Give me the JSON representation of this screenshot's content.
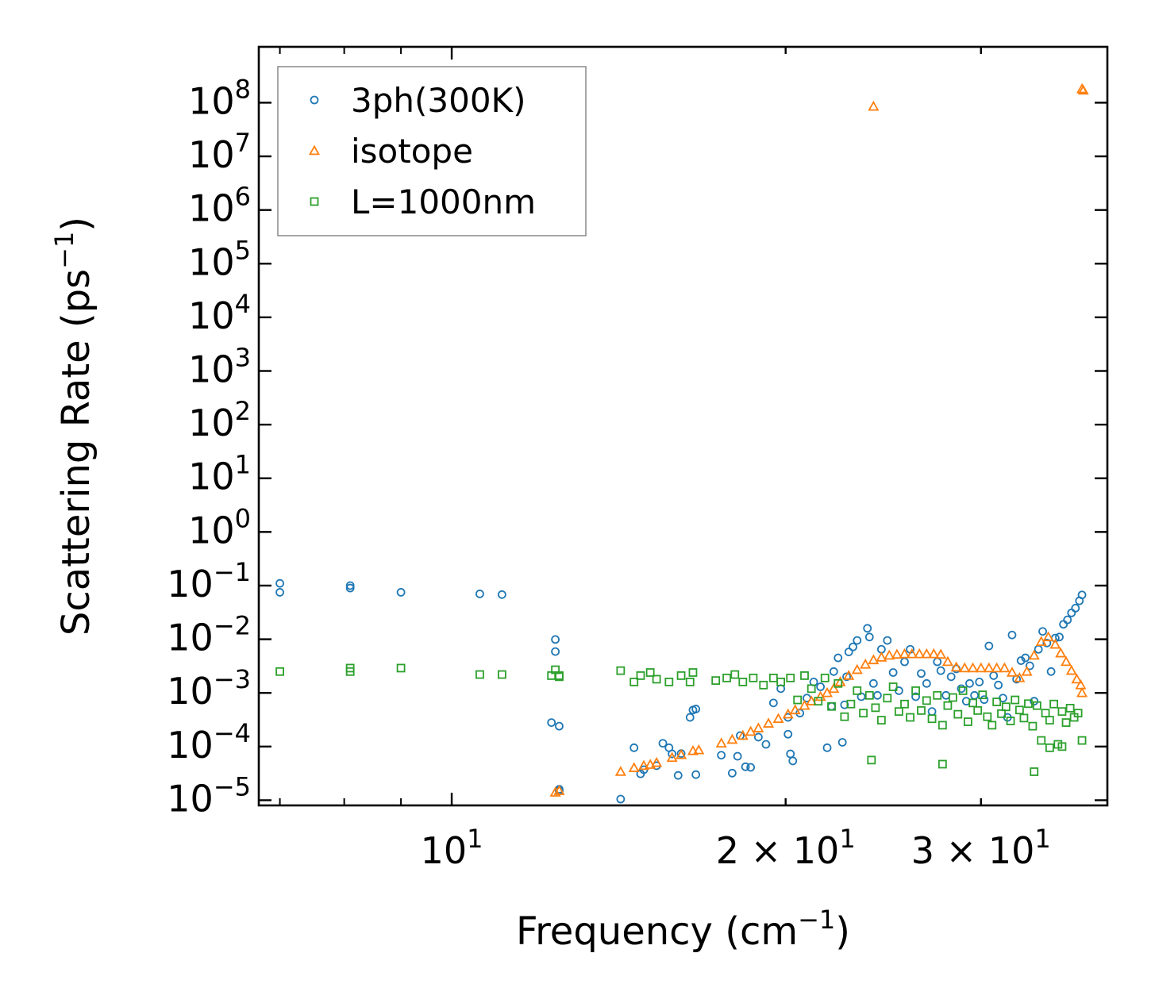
{
  "chart_data": {
    "type": "scatter",
    "xscale": "log",
    "yscale": "log",
    "xlabel": "Frequency (cm$^{-1}$)",
    "ylabel": "Scattering Rate (ps$^{-1}$)",
    "xlabel_parts": {
      "main": "Frequency (cm",
      "sup": "−1",
      "end": ")"
    },
    "ylabel_parts": {
      "main": "Scattering Rate (ps",
      "sup": "−1",
      "end": ")"
    },
    "xlim": [
      6.7,
      39.0
    ],
    "ylim": [
      8e-06,
      1100000000.0
    ],
    "x_ticks": [
      {
        "value": 10,
        "mantissa": "",
        "base": "10",
        "exp": "1"
      },
      {
        "value": 20,
        "mantissa": "2 × ",
        "base": "10",
        "exp": "1"
      },
      {
        "value": 30,
        "mantissa": "3 × ",
        "base": "10",
        "exp": "1"
      }
    ],
    "y_ticks": [
      {
        "exp": -5,
        "label": "−5"
      },
      {
        "exp": -4,
        "label": "−4"
      },
      {
        "exp": -3,
        "label": "−3"
      },
      {
        "exp": -2,
        "label": "−2"
      },
      {
        "exp": -1,
        "label": "−1"
      },
      {
        "exp": 0,
        "label": "0"
      },
      {
        "exp": 1,
        "label": "1"
      },
      {
        "exp": 2,
        "label": "2"
      },
      {
        "exp": 3,
        "label": "3"
      },
      {
        "exp": 4,
        "label": "4"
      },
      {
        "exp": 5,
        "label": "5"
      },
      {
        "exp": 6,
        "label": "6"
      },
      {
        "exp": 7,
        "label": "7"
      },
      {
        "exp": 8,
        "label": "8"
      }
    ],
    "legend": {
      "position": "top-left"
    },
    "series": [
      {
        "name": "3ph(300K)",
        "marker": "circle",
        "color": "#1f77b4",
        "x": [
          7.0,
          7.0,
          8.1,
          8.1,
          9.0,
          10.6,
          11.1,
          12.3,
          12.4,
          12.4,
          12.5,
          12.5,
          12.5,
          14.2,
          14.6,
          14.8,
          14.9,
          15.3,
          15.5,
          15.7,
          15.8,
          16.0,
          16.1,
          16.4,
          16.5,
          16.6,
          16.6,
          17.5,
          17.9,
          18.1,
          18.2,
          18.4,
          18.6,
          18.9,
          19.2,
          19.5,
          19.8,
          20.1,
          20.1,
          20.2,
          20.3,
          20.6,
          20.9,
          21.2,
          21.5,
          21.8,
          22.0,
          22.1,
          22.3,
          22.5,
          22.6,
          22.7,
          22.8,
          23.0,
          23.2,
          23.4,
          23.7,
          23.8,
          24.0,
          24.2,
          24.4,
          24.7,
          25.0,
          25.3,
          25.6,
          25.9,
          26.2,
          26.5,
          26.8,
          27.1,
          27.4,
          27.6,
          27.9,
          28.2,
          28.5,
          28.8,
          29.1,
          29.3,
          29.6,
          29.9,
          30.2,
          30.5,
          30.8,
          31.1,
          31.4,
          31.7,
          32.0,
          32.3,
          32.6,
          32.9,
          33.2,
          33.5,
          33.8,
          34.1,
          34.4,
          34.7,
          35.0,
          35.3,
          35.6,
          35.9,
          36.2,
          36.5,
          36.8,
          37.0
        ],
        "y": [
          0.075,
          0.11,
          0.09,
          0.1,
          0.075,
          0.07,
          0.068,
          0.00028,
          0.0099,
          0.0059,
          0.00024,
          1.6e-05,
          1.5e-05,
          1.05e-05,
          9.5e-05,
          3.1e-05,
          3.7e-05,
          4.4e-05,
          0.000115,
          9.5e-05,
          7.3e-05,
          2.9e-05,
          7.4e-05,
          0.00035,
          0.00048,
          0.0005,
          3e-05,
          6.9e-05,
          3.2e-05,
          6.6e-05,
          0.00016,
          4.2e-05,
          4.1e-05,
          0.00015,
          0.00011,
          0.00065,
          0.0012,
          0.00035,
          0.00017,
          7.3e-05,
          5.4e-05,
          0.00042,
          0.0008,
          0.0016,
          0.0013,
          9.5e-05,
          0.00056,
          0.0025,
          0.0045,
          0.00012,
          0.0006,
          0.002,
          0.0058,
          0.0072,
          0.0095,
          0.00085,
          0.016,
          0.011,
          0.0015,
          0.0009,
          0.0065,
          0.0095,
          0.0024,
          0.0011,
          0.0038,
          0.0065,
          0.00085,
          0.0023,
          0.0015,
          0.00045,
          0.0038,
          0.0026,
          0.0009,
          0.002,
          0.0028,
          0.0012,
          0.0007,
          0.0015,
          0.0009,
          0.0016,
          0.00075,
          0.0075,
          0.0021,
          0.0014,
          0.0008,
          0.00035,
          0.012,
          0.0018,
          0.004,
          0.0045,
          0.0032,
          0.0007,
          0.0065,
          0.014,
          0.0085,
          0.0025,
          0.0105,
          0.011,
          0.019,
          0.023,
          0.031,
          0.038,
          0.052,
          0.067
        ]
      },
      {
        "name": "isotope",
        "marker": "triangle",
        "color": "#ff7f0e",
        "x": [
          12.4,
          12.5,
          14.2,
          14.6,
          14.9,
          15.1,
          15.3,
          15.8,
          16.1,
          16.5,
          16.7,
          17.5,
          17.9,
          18.3,
          18.6,
          18.9,
          19.3,
          19.7,
          20.1,
          20.4,
          20.8,
          21.1,
          21.5,
          21.8,
          22.1,
          22.4,
          22.8,
          23.2,
          23.6,
          24.0,
          24.4,
          24.8,
          25.2,
          25.6,
          26.0,
          26.4,
          26.8,
          27.2,
          27.6,
          28.0,
          28.5,
          29.0,
          29.5,
          30.0,
          30.5,
          31.0,
          31.5,
          32.0,
          32.5,
          33.0,
          33.5,
          34.0,
          34.5,
          35.0,
          35.4,
          35.8,
          36.2,
          36.6,
          36.9,
          37.0,
          37.1
        ],
        "y": [
          1.4e-05,
          1.5e-05,
          3.4e-05,
          4e-05,
          4.4e-05,
          4.6e-05,
          5e-05,
          6.2e-05,
          7e-05,
          8.3e-05,
          8.6e-05,
          0.000115,
          0.000135,
          0.00016,
          0.00019,
          0.00022,
          0.00027,
          0.00033,
          0.0004,
          0.00048,
          0.00058,
          0.0007,
          0.00085,
          0.001,
          0.0012,
          0.0016,
          0.0021,
          0.0027,
          0.0034,
          0.0041,
          0.0046,
          0.005,
          0.0052,
          0.0053,
          0.0053,
          0.0053,
          0.0053,
          0.0053,
          0.0052,
          0.0038,
          0.003,
          0.0029,
          0.0029,
          0.0029,
          0.0029,
          0.0029,
          0.0029,
          0.0024,
          0.0019,
          0.0025,
          0.005,
          0.009,
          0.011,
          0.008,
          0.0055,
          0.0038,
          0.0026,
          0.0018,
          0.0014,
          0.001,
          170000000.0
        ],
        "outliers_x": [
          24.0,
          37.0
        ],
        "outliers_y": [
          85000000.0,
          180000000.0
        ]
      },
      {
        "name": "L=1000nm",
        "marker": "square",
        "color": "#2ca02c",
        "x": [
          7.0,
          8.1,
          8.1,
          9.0,
          10.6,
          11.1,
          12.3,
          12.4,
          12.5,
          12.5,
          14.2,
          14.6,
          14.8,
          15.1,
          15.3,
          15.7,
          16.1,
          16.4,
          16.5,
          17.3,
          17.7,
          18.0,
          18.3,
          18.7,
          19.1,
          19.5,
          19.8,
          20.2,
          20.5,
          20.8,
          21.1,
          21.4,
          21.7,
          22.0,
          22.3,
          22.6,
          22.9,
          23.2,
          23.5,
          23.8,
          24.1,
          24.4,
          24.7,
          25.0,
          25.3,
          25.6,
          25.9,
          26.2,
          26.5,
          26.8,
          27.1,
          27.4,
          27.7,
          28.0,
          28.3,
          28.6,
          28.9,
          29.2,
          29.5,
          29.8,
          30.1,
          30.4,
          30.7,
          31.0,
          31.3,
          31.6,
          31.9,
          32.2,
          32.5,
          32.8,
          33.1,
          33.4,
          33.7,
          34.0,
          34.3,
          34.6,
          34.9,
          35.2,
          35.5,
          35.8,
          36.1,
          36.4,
          36.7,
          37.0,
          23.9,
          27.7,
          33.5,
          34.6,
          35.5
        ],
        "y": [
          0.0025,
          0.0025,
          0.0029,
          0.0029,
          0.0022,
          0.0022,
          0.0021,
          0.0027,
          0.0021,
          0.002,
          0.0026,
          0.0016,
          0.0021,
          0.0024,
          0.0018,
          0.0016,
          0.0021,
          0.0016,
          0.0024,
          0.0017,
          0.0019,
          0.0022,
          0.0016,
          0.0019,
          0.0014,
          0.0019,
          0.0016,
          0.0019,
          0.00074,
          0.0021,
          0.0012,
          0.0007,
          0.0019,
          0.00056,
          0.0015,
          0.00036,
          0.00062,
          0.0011,
          0.00042,
          0.0009,
          0.00053,
          0.00031,
          0.0008,
          0.0013,
          0.00045,
          0.00062,
          0.00035,
          0.0011,
          0.00047,
          0.00072,
          0.00033,
          0.0009,
          0.00025,
          0.00058,
          0.00082,
          0.0004,
          0.0011,
          0.00029,
          0.00065,
          0.00047,
          0.00092,
          0.00036,
          0.00025,
          0.00068,
          0.00041,
          0.00055,
          0.0003,
          0.00074,
          0.00048,
          0.00034,
          0.00063,
          0.00024,
          0.00058,
          0.00013,
          0.00042,
          0.00031,
          0.00062,
          0.00011,
          0.00045,
          0.00028,
          0.00052,
          0.00035,
          0.00042,
          0.00013,
          5.6e-05,
          4.7e-05,
          3.4e-05,
          9.5e-05,
          0.0001
        ]
      }
    ]
  }
}
